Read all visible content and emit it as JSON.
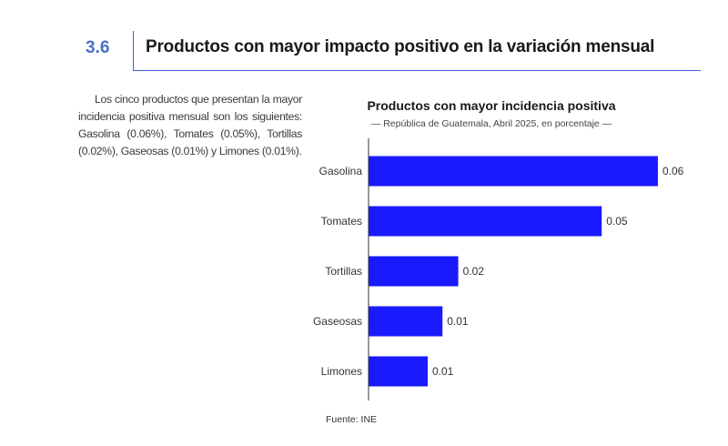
{
  "section": {
    "number": "3.6",
    "title": "Productos con mayor impacto positivo en la variación mensual"
  },
  "intro_text": "Los cinco productos que presentan la mayor incidencia positiva mensual son los siguientes: Gasolina (0.06%), Tomates (0.05%), Tortillas (0.02%), Gaseosas (0.01%) y Limones (0.01%).",
  "colors": {
    "bar": "#1a1aff",
    "accent": "#3b5bdb"
  },
  "chart_data": {
    "type": "bar",
    "orientation": "horizontal",
    "title": "Productos con mayor incidencia positiva",
    "subtitle": "— República de Guatemala, Abril 2025, en porcentaje —",
    "categories": [
      "Gasolina",
      "Tomates",
      "Tortillas",
      "Gaseosas",
      "Limones"
    ],
    "values": [
      0.06,
      0.05,
      0.02,
      0.01,
      0.01
    ],
    "value_labels": [
      "0.06",
      "0.05",
      "0.02",
      "0.01",
      "0.01"
    ],
    "bar_lengths": [
      0.0587,
      0.0473,
      0.0182,
      0.015,
      0.012
    ],
    "xlim": [
      0,
      0.06
    ],
    "xlabel": "",
    "ylabel": "",
    "grid": false,
    "source": "Fuente: INE"
  }
}
